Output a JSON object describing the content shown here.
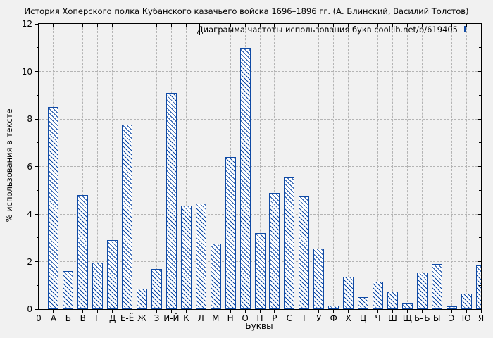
{
  "colors": {
    "bar": "#0f4aa5",
    "grid": "#b4b4b4",
    "axis": "#000000",
    "background": "#f1f1f1"
  },
  "chart_data": {
    "type": "bar",
    "title": "История Хоперского полка Кубанского казачьего войска 1696–1896 гг. (А. Блинский, Василий Толстов)",
    "legend_label": "Диаграмма частоты использования букв coollib.net/b/619405",
    "legend_position": "top-right",
    "xlabel": "Буквы",
    "ylabel": "% использования в тексте",
    "ylim": [
      0,
      12
    ],
    "yticks": [
      0,
      2,
      4,
      6,
      8,
      10,
      12
    ],
    "grid": true,
    "bar_style": "hatched-diagonal",
    "categories": [
      "0",
      "А",
      "Б",
      "В",
      "Г",
      "Д",
      "Е-Ё",
      "Ж",
      "З",
      "И-Й",
      "К",
      "Л",
      "М",
      "Н",
      "О",
      "П",
      "Р",
      "С",
      "Т",
      "У",
      "Ф",
      "Х",
      "Ц",
      "Ч",
      "Ш",
      "Щ",
      "Ь-Ъ",
      "Ы",
      "Э",
      "Ю",
      "Я"
    ],
    "values": [
      0,
      8.5,
      1.6,
      4.8,
      1.95,
      2.9,
      7.75,
      0.85,
      1.7,
      9.1,
      4.35,
      4.45,
      2.75,
      6.4,
      11.0,
      3.2,
      4.9,
      5.55,
      4.75,
      2.55,
      0.15,
      1.35,
      0.5,
      1.15,
      0.75,
      0.25,
      1.55,
      1.9,
      0.12,
      0.65,
      1.85
    ]
  }
}
